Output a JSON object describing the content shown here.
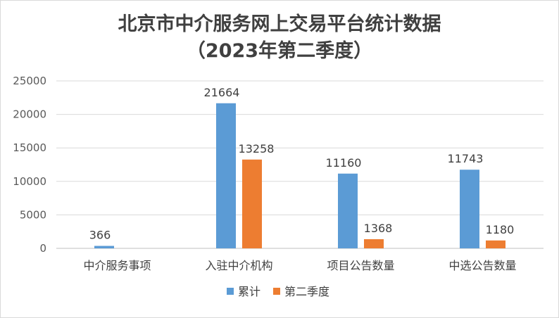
{
  "chart_data": {
    "type": "bar",
    "title_line1": "北京市中介服务网上交易平台统计数据",
    "title_line2": "（2023年第二季度）",
    "categories": [
      "中介服务事项",
      "入驻中介机构",
      "项目公告数量",
      "中选公告数量"
    ],
    "series": [
      {
        "name": "累计",
        "color": "#5b9bd5",
        "values": [
          366,
          21664,
          11160,
          11743
        ]
      },
      {
        "name": "第二季度",
        "color": "#ed7d31",
        "values": [
          null,
          13258,
          1368,
          1180
        ]
      }
    ],
    "ylim": [
      0,
      25000
    ],
    "yticks": [
      0,
      5000,
      10000,
      15000,
      20000,
      25000
    ],
    "grid": true,
    "legend_position": "bottom"
  }
}
